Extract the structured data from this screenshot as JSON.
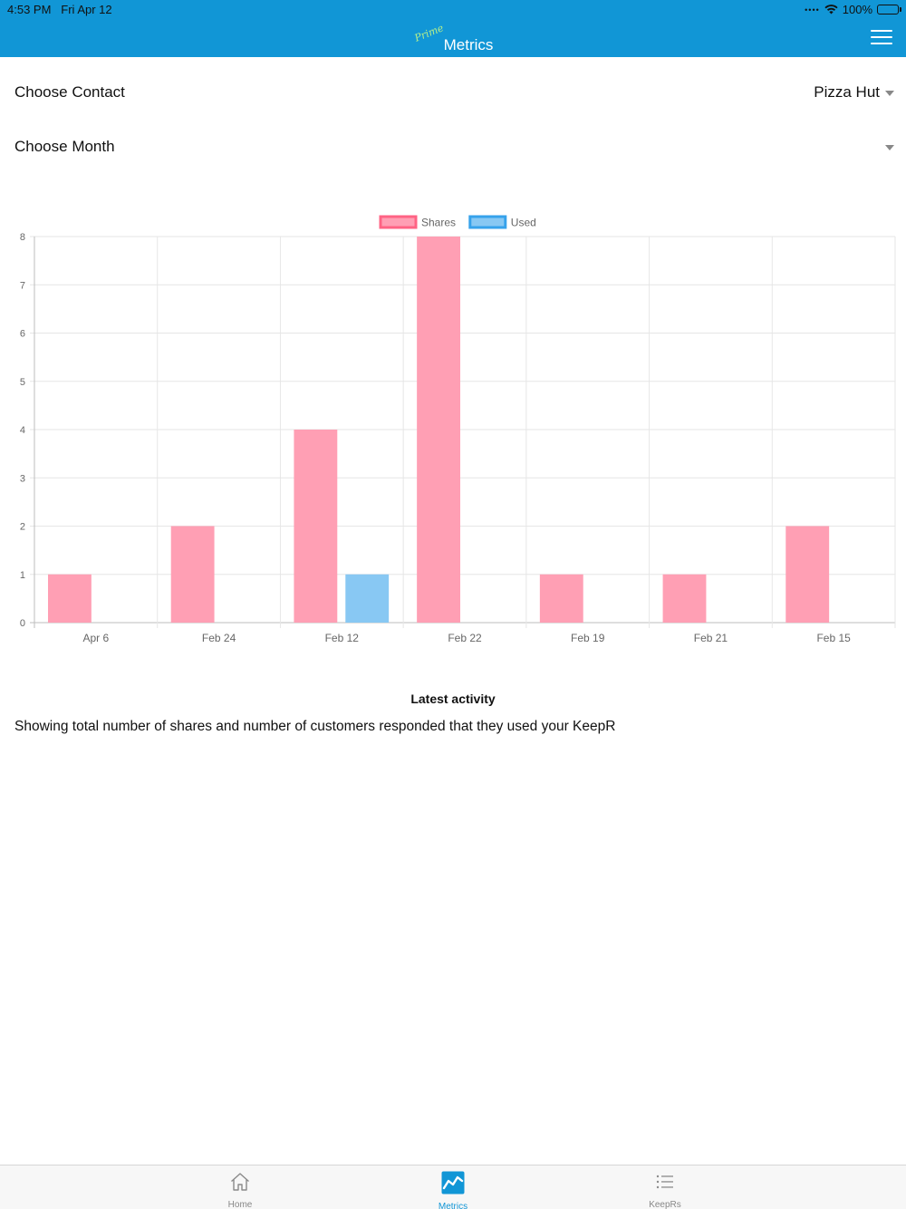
{
  "status_bar": {
    "time": "4:53 PM",
    "date": "Fri Apr 12",
    "battery": "100%"
  },
  "header": {
    "badge": "Prime",
    "title": "Metrics"
  },
  "filters": {
    "contact_label": "Choose Contact",
    "contact_value": "Pizza Hut",
    "month_label": "Choose Month",
    "month_value": ""
  },
  "chart_data": {
    "type": "bar",
    "categories": [
      "Apr 6",
      "Feb 24",
      "Feb 12",
      "Feb 22",
      "Feb 19",
      "Feb 21",
      "Feb 15"
    ],
    "series": [
      {
        "name": "Shares",
        "values": [
          1,
          2,
          4,
          8,
          1,
          1,
          2
        ],
        "color": "#ff9fb4",
        "border": "#ff6384"
      },
      {
        "name": "Used",
        "values": [
          0,
          0,
          1,
          0,
          0,
          0,
          0
        ],
        "color": "#88c8f3",
        "border": "#36a2eb"
      }
    ],
    "ylim": [
      0,
      8
    ],
    "yticks": [
      0,
      1,
      2,
      3,
      4,
      5,
      6,
      7,
      8
    ],
    "grid": true,
    "legend_position": "top"
  },
  "activity": {
    "title": "Latest activity",
    "description": "Showing total number of shares and number of customers responded that they used your KeepR"
  },
  "tabs": [
    {
      "label": "Home",
      "icon": "home-icon",
      "active": false
    },
    {
      "label": "Metrics",
      "icon": "metrics-icon",
      "active": true
    },
    {
      "label": "KeepRs",
      "icon": "list-icon",
      "active": false
    }
  ],
  "colors": {
    "header": "#1196d6",
    "accent": "#1196d6",
    "prime_badge": "#b8f08a"
  }
}
